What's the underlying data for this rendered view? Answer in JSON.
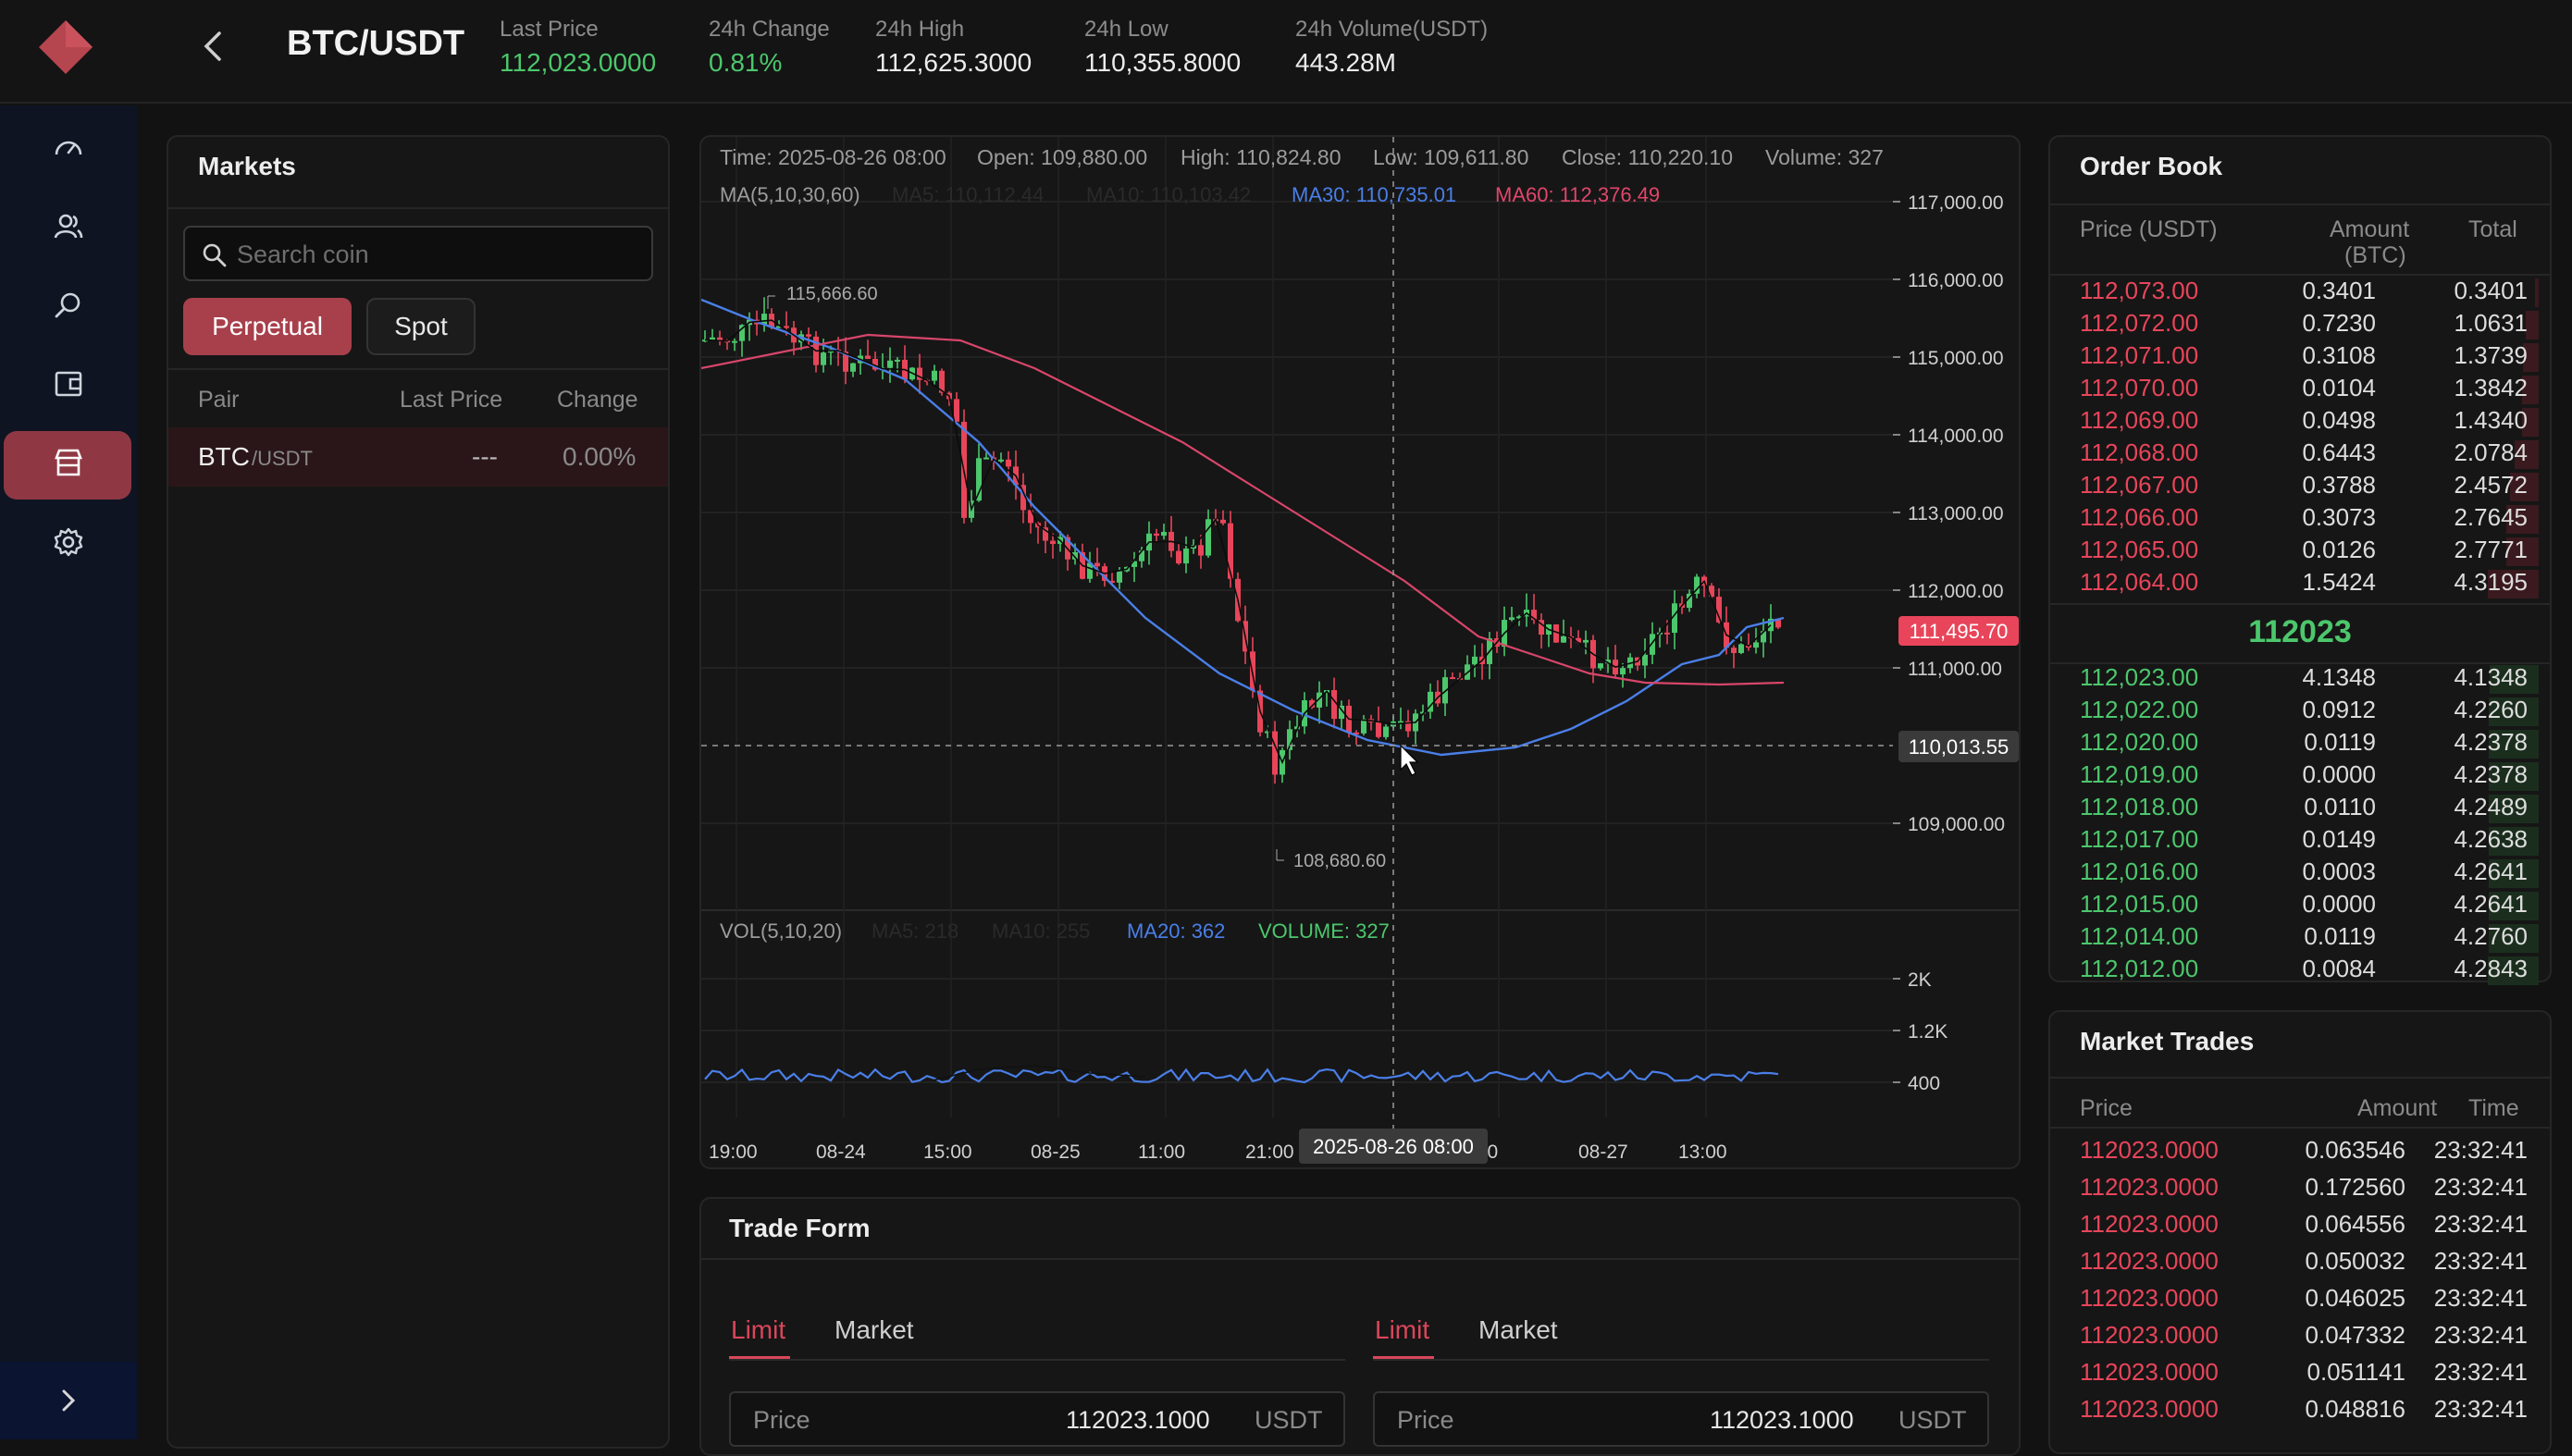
{
  "header": {
    "pair": "BTC/USDT",
    "stats": [
      {
        "label": "Last Price",
        "value": "112,023.0000",
        "tone": "green"
      },
      {
        "label": "24h Change",
        "value": "0.81%",
        "tone": "green"
      },
      {
        "label": "24h High",
        "value": "112,625.3000",
        "tone": "white"
      },
      {
        "label": "24h Low",
        "value": "110,355.8000",
        "tone": "white"
      },
      {
        "label": "24h Volume(USDT)",
        "value": "443.28M",
        "tone": "white"
      }
    ]
  },
  "sidebar": {
    "icons": [
      "dashboard-icon",
      "users-icon",
      "search-icon",
      "wallet-icon",
      "store-icon",
      "gear-icon"
    ],
    "active": "store-icon"
  },
  "markets": {
    "title": "Markets",
    "search_placeholder": "Search coin",
    "tabs": [
      "Perpetual",
      "Spot"
    ],
    "columns": [
      "Pair",
      "Last Price",
      "Change"
    ],
    "rows": [
      {
        "base": "BTC",
        "quote": "/USDT",
        "price": "---",
        "change": "0.00%"
      }
    ]
  },
  "chart": {
    "info": {
      "time": "Time: 2025-08-26 08:00",
      "open": "Open: 109,880.00",
      "high": "High: 110,824.80",
      "low": "Low: 109,611.80",
      "close": "Close: 110,220.10",
      "volume": "Volume: 327"
    },
    "ma_label": "MA(5,10,30,60)",
    "ma": [
      {
        "text": "MA5: 110,112.44",
        "color": "#2a2a2a"
      },
      {
        "text": "MA10: 110,103.42",
        "color": "#2a2a2a"
      },
      {
        "text": "MA30: 110,735.01",
        "color": "#4a7fe8"
      },
      {
        "text": "MA60: 112,376.49",
        "color": "#e0466a"
      }
    ],
    "vol_label": "VOL(5,10,20)",
    "vol_ma": [
      {
        "text": "MA5: 218",
        "color": "#2a2a2a"
      },
      {
        "text": "MA10: 255",
        "color": "#2a2a2a"
      },
      {
        "text": "MA20: 362",
        "color": "#4a7fe8"
      },
      {
        "text": "VOLUME: 327",
        "color": "#4cc76c"
      }
    ],
    "y_ticks": [
      "117,000.00",
      "116,000.00",
      "115,000.00",
      "114,000.00",
      "113,000.00",
      "112,000.00",
      "111,000.00",
      "109,000.00"
    ],
    "vol_ticks": [
      "2K",
      "1.2K",
      "400"
    ],
    "x_ticks": [
      "19:00",
      "08-24",
      "15:00",
      "08-25",
      "11:00",
      "21:00",
      ":00",
      "08-27",
      "13:00"
    ],
    "cursor_time": "2025-08-26 08:00",
    "last_price_tag": "111,495.70",
    "cursor_price_tag": "110,013.55",
    "high_mark": "115,666.60",
    "low_mark": "108,680.60"
  },
  "trade_form": {
    "title": "Trade Form",
    "tabs": [
      "Limit",
      "Market"
    ],
    "price_label": "Price",
    "price_value": "112023.1000",
    "unit": "USDT"
  },
  "order_book": {
    "title": "Order Book",
    "columns": [
      "Price (USDT)",
      "Amount",
      "(BTC)",
      "Total"
    ],
    "asks": [
      {
        "price": "112,073.00",
        "amount": "0.3401",
        "total": "0.3401"
      },
      {
        "price": "112,072.00",
        "amount": "0.7230",
        "total": "1.0631"
      },
      {
        "price": "112,071.00",
        "amount": "0.3108",
        "total": "1.3739"
      },
      {
        "price": "112,070.00",
        "amount": "0.0104",
        "total": "1.3842"
      },
      {
        "price": "112,069.00",
        "amount": "0.0498",
        "total": "1.4340"
      },
      {
        "price": "112,068.00",
        "amount": "0.6443",
        "total": "2.0784"
      },
      {
        "price": "112,067.00",
        "amount": "0.3788",
        "total": "2.4572"
      },
      {
        "price": "112,066.00",
        "amount": "0.3073",
        "total": "2.7645"
      },
      {
        "price": "112,065.00",
        "amount": "0.0126",
        "total": "2.7771"
      },
      {
        "price": "112,064.00",
        "amount": "1.5424",
        "total": "4.3195"
      }
    ],
    "mid": "112023",
    "bids": [
      {
        "price": "112,023.00",
        "amount": "4.1348",
        "total": "4.1348"
      },
      {
        "price": "112,022.00",
        "amount": "0.0912",
        "total": "4.2260"
      },
      {
        "price": "112,020.00",
        "amount": "0.0119",
        "total": "4.2378"
      },
      {
        "price": "112,019.00",
        "amount": "0.0000",
        "total": "4.2378"
      },
      {
        "price": "112,018.00",
        "amount": "0.0110",
        "total": "4.2489"
      },
      {
        "price": "112,017.00",
        "amount": "0.0149",
        "total": "4.2638"
      },
      {
        "price": "112,016.00",
        "amount": "0.0003",
        "total": "4.2641"
      },
      {
        "price": "112,015.00",
        "amount": "0.0000",
        "total": "4.2641"
      },
      {
        "price": "112,014.00",
        "amount": "0.0119",
        "total": "4.2760"
      },
      {
        "price": "112,012.00",
        "amount": "0.0084",
        "total": "4.2843"
      }
    ]
  },
  "market_trades": {
    "title": "Market Trades",
    "columns": [
      "Price",
      "Amount",
      "Time"
    ],
    "rows": [
      {
        "price": "112023.0000",
        "amount": "0.063546",
        "time": "23:32:41"
      },
      {
        "price": "112023.0000",
        "amount": "0.172560",
        "time": "23:32:41"
      },
      {
        "price": "112023.0000",
        "amount": "0.064556",
        "time": "23:32:41"
      },
      {
        "price": "112023.0000",
        "amount": "0.050032",
        "time": "23:32:41"
      },
      {
        "price": "112023.0000",
        "amount": "0.046025",
        "time": "23:32:41"
      },
      {
        "price": "112023.0000",
        "amount": "0.047332",
        "time": "23:32:41"
      },
      {
        "price": "112023.0000",
        "amount": "0.051141",
        "time": "23:32:41"
      },
      {
        "price": "112023.0000",
        "amount": "0.048816",
        "time": "23:32:41"
      }
    ]
  },
  "colors": {
    "up": "#4cc76c",
    "down": "#e8455a",
    "accent": "#a8404c",
    "ma30": "#4a7fe8",
    "ma60": "#e0466a"
  }
}
